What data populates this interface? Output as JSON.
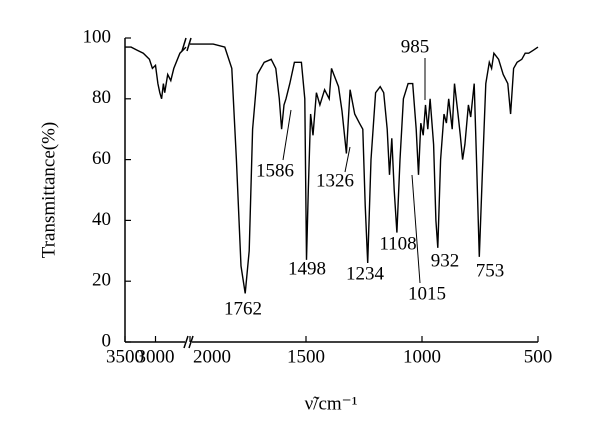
{
  "chart_data": {
    "type": "line",
    "ylabel": "Transmittance(%)",
    "xlabel": "ν̃/cm⁻¹",
    "xlim": [
      3500,
      500
    ],
    "xbreak": [
      2500,
      2000
    ],
    "xticks": [
      3500,
      3000,
      2000,
      1500,
      1000,
      500
    ],
    "ylim": [
      0,
      100
    ],
    "yticks": [
      0,
      20,
      40,
      60,
      80,
      100
    ],
    "color": "#000000",
    "x": [
      3500,
      3400,
      3300,
      3200,
      3100,
      3050,
      3000,
      2980,
      2960,
      2930,
      2900,
      2870,
      2850,
      2800,
      2750,
      2700,
      2600,
      2500,
      2000,
      1900,
      1850,
      1820,
      1800,
      1780,
      1762,
      1745,
      1730,
      1710,
      1680,
      1650,
      1630,
      1615,
      1605,
      1595,
      1586,
      1570,
      1550,
      1520,
      1505,
      1498,
      1490,
      1480,
      1470,
      1455,
      1440,
      1420,
      1400,
      1390,
      1380,
      1360,
      1345,
      1326,
      1310,
      1290,
      1270,
      1255,
      1245,
      1234,
      1220,
      1200,
      1180,
      1165,
      1150,
      1140,
      1130,
      1120,
      1108,
      1095,
      1080,
      1060,
      1040,
      1025,
      1015,
      1005,
      995,
      985,
      975,
      965,
      950,
      940,
      932,
      920,
      905,
      895,
      885,
      870,
      860,
      845,
      835,
      825,
      815,
      800,
      790,
      775,
      765,
      753,
      740,
      725,
      710,
      700,
      690,
      670,
      650,
      630,
      618,
      605,
      590,
      570,
      555,
      540,
      520,
      500
    ],
    "values": [
      97,
      97,
      96,
      95,
      93,
      90,
      91,
      88,
      85,
      82,
      80,
      85,
      82,
      88,
      86,
      90,
      95,
      97,
      98,
      98,
      97,
      90,
      60,
      25,
      16,
      30,
      70,
      88,
      92,
      93,
      90,
      80,
      70,
      78,
      80,
      85,
      92,
      92,
      80,
      27,
      50,
      75,
      68,
      82,
      78,
      83,
      80,
      90,
      88,
      84,
      76,
      62,
      83,
      75,
      72,
      70,
      45,
      26,
      60,
      82,
      84,
      82,
      70,
      55,
      67,
      50,
      36,
      60,
      80,
      85,
      85,
      70,
      55,
      72,
      68,
      78,
      70,
      80,
      65,
      40,
      31,
      60,
      75,
      72,
      80,
      70,
      85,
      75,
      68,
      60,
      65,
      78,
      74,
      85,
      60,
      28,
      55,
      85,
      92,
      90,
      95,
      93,
      88,
      85,
      75,
      90,
      92,
      93,
      95,
      95,
      96,
      97
    ],
    "peaks": [
      1762,
      1586,
      1498,
      1326,
      1234,
      1108,
      985,
      932,
      1015,
      753
    ]
  }
}
